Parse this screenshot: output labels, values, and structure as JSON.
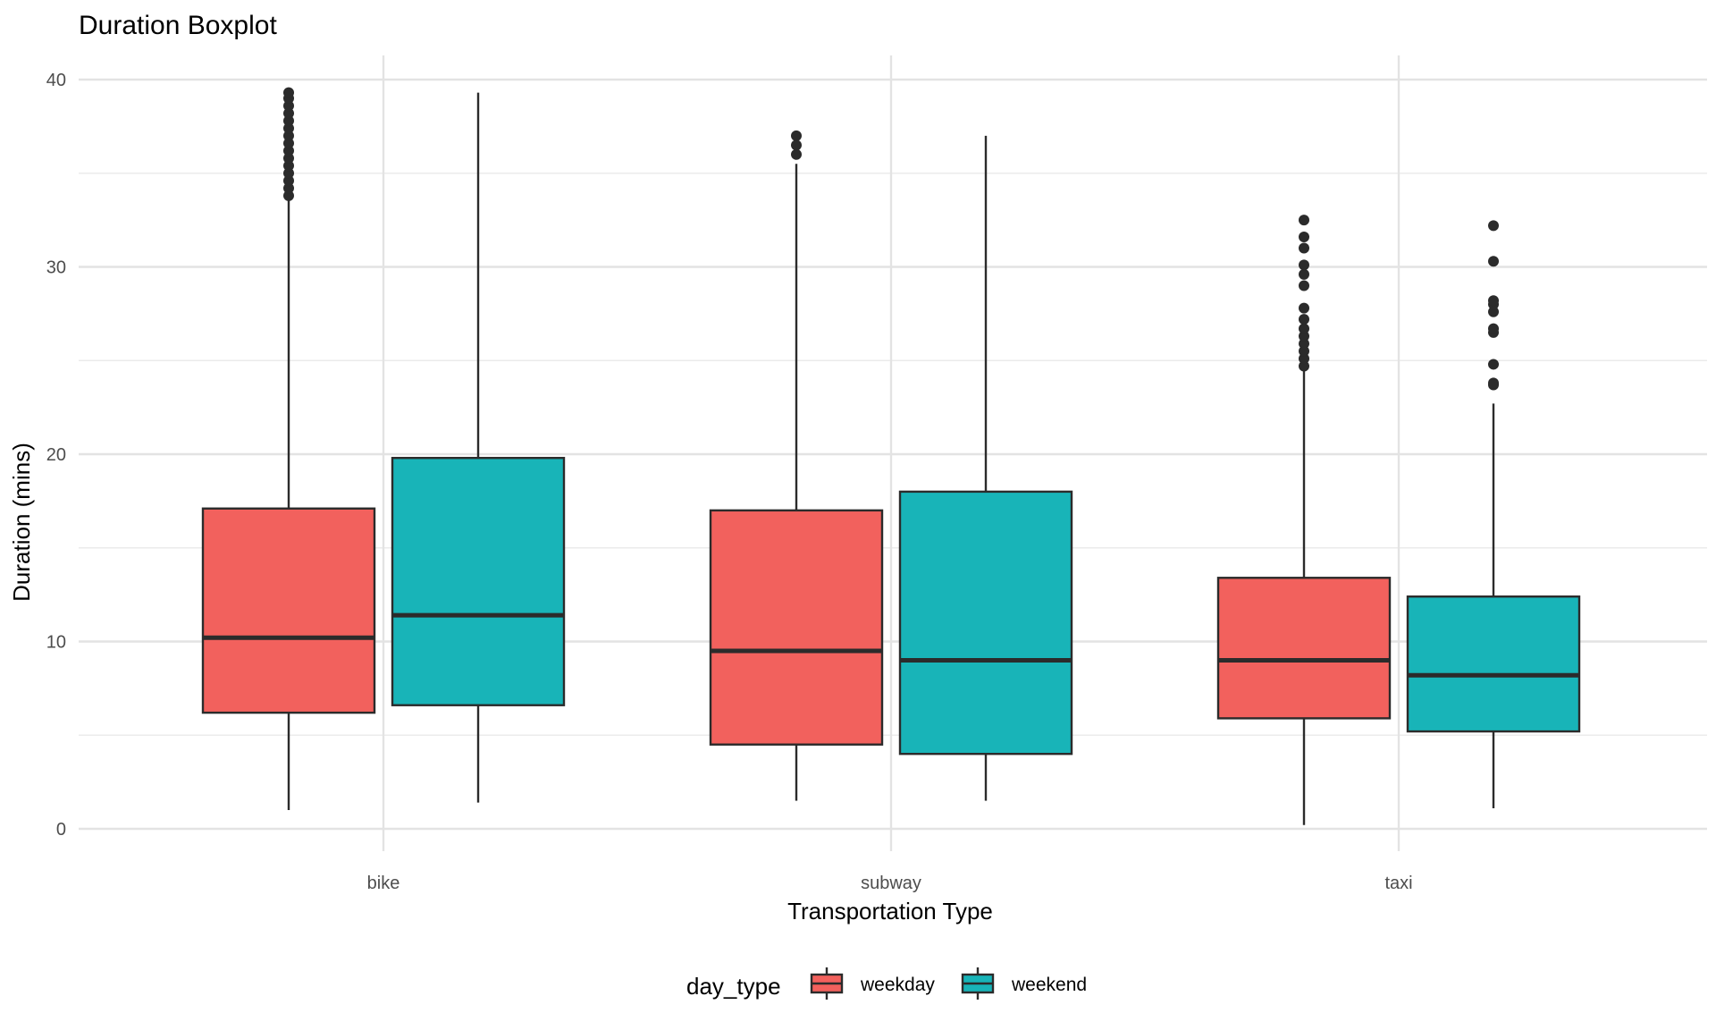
{
  "chart_data": {
    "type": "boxplot",
    "title": "Duration Boxplot",
    "xlabel": "Transportation Type",
    "ylabel": "Duration (mins)",
    "ylim": [
      -0.5,
      41.3
    ],
    "y_ticks": [
      0,
      10,
      20,
      30,
      40
    ],
    "categories": [
      "bike",
      "subway",
      "taxi"
    ],
    "grid": true,
    "legend": {
      "title": "day_type",
      "position": "bottom",
      "items": [
        {
          "label": "weekday",
          "color": "#F2615D"
        },
        {
          "label": "weekend",
          "color": "#18B4B8"
        }
      ]
    },
    "series": [
      {
        "name": "weekday",
        "color": "#F2615D",
        "boxes": [
          {
            "category": "bike",
            "min": 1.0,
            "q1": 6.2,
            "median": 10.2,
            "q3": 17.1,
            "max": 33.6,
            "outliers": [
              33.8,
              34.2,
              34.6,
              35.0,
              35.4,
              35.8,
              36.2,
              36.6,
              37.0,
              37.4,
              37.8,
              38.2,
              38.6,
              39.0,
              39.3
            ]
          },
          {
            "category": "subway",
            "min": 1.5,
            "q1": 4.5,
            "median": 9.5,
            "q3": 17.0,
            "max": 35.5,
            "outliers": [
              36.0,
              36.5,
              37.0
            ]
          },
          {
            "category": "taxi",
            "min": 0.2,
            "q1": 5.9,
            "median": 9.0,
            "q3": 13.4,
            "max": 24.5,
            "outliers": [
              24.7,
              25.1,
              25.5,
              25.9,
              26.3,
              26.7,
              27.2,
              27.8,
              29.0,
              29.6,
              30.1,
              31.0,
              31.6,
              32.5
            ]
          }
        ]
      },
      {
        "name": "weekend",
        "color": "#18B4B8",
        "boxes": [
          {
            "category": "bike",
            "min": 1.4,
            "q1": 6.6,
            "median": 11.4,
            "q3": 19.8,
            "max": 39.3,
            "outliers": []
          },
          {
            "category": "subway",
            "min": 1.5,
            "q1": 4.0,
            "median": 9.0,
            "q3": 18.0,
            "max": 37.0,
            "outliers": []
          },
          {
            "category": "taxi",
            "min": 1.1,
            "q1": 5.2,
            "median": 8.2,
            "q3": 12.4,
            "max": 22.7,
            "outliers": [
              23.7,
              23.8,
              24.8,
              26.5,
              26.7,
              27.6,
              28.0,
              28.2,
              30.3,
              32.2
            ]
          }
        ]
      }
    ]
  }
}
